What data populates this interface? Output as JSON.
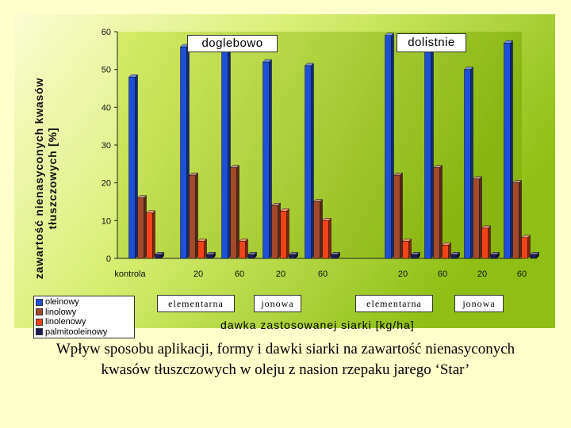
{
  "chart_data": {
    "type": "bar",
    "title": "",
    "ylabel": "zawartość nienasyconych kwasów tłuszczowych [%]",
    "xlabel": "dawka zastosowanej siarki [kg/ha]",
    "ylim": [
      0,
      60
    ],
    "yticks": [
      0,
      10,
      20,
      30,
      40,
      50,
      60
    ],
    "grid": false,
    "legend_position": "bottom-left",
    "categories": [
      "kontrola",
      "20",
      "60",
      "20",
      "60",
      "20",
      "60",
      "20",
      "60"
    ],
    "section_labels": [
      "doglebowo",
      "dolistnie"
    ],
    "group_labels": [
      "elementarna",
      "jonowa",
      "elementarna",
      "jonowa"
    ],
    "series": [
      {
        "name": "oleinowy",
        "color": "#1d4fd8",
        "values": [
          48,
          56,
          55,
          52,
          51,
          59,
          58,
          50,
          57
        ]
      },
      {
        "name": "linolowy",
        "color": "#a24a2a",
        "values": [
          16,
          22,
          24,
          14,
          15,
          22,
          24,
          21,
          20
        ]
      },
      {
        "name": "linolenowy",
        "color": "#f04418",
        "values": [
          12,
          4.5,
          4.5,
          12.5,
          10,
          4.5,
          3.5,
          8,
          5.5
        ]
      },
      {
        "name": "palmitooleinowy",
        "color": "#1c1c58",
        "values": [
          1,
          1,
          1,
          1,
          1,
          1,
          1,
          1,
          1
        ]
      }
    ]
  },
  "caption": "Wpływ sposobu aplikacji, formy i dawki siarki na zawartość nienasyconych kwasów tłuszczowych w oleju z nasion rzepaku jarego ‘Star’"
}
